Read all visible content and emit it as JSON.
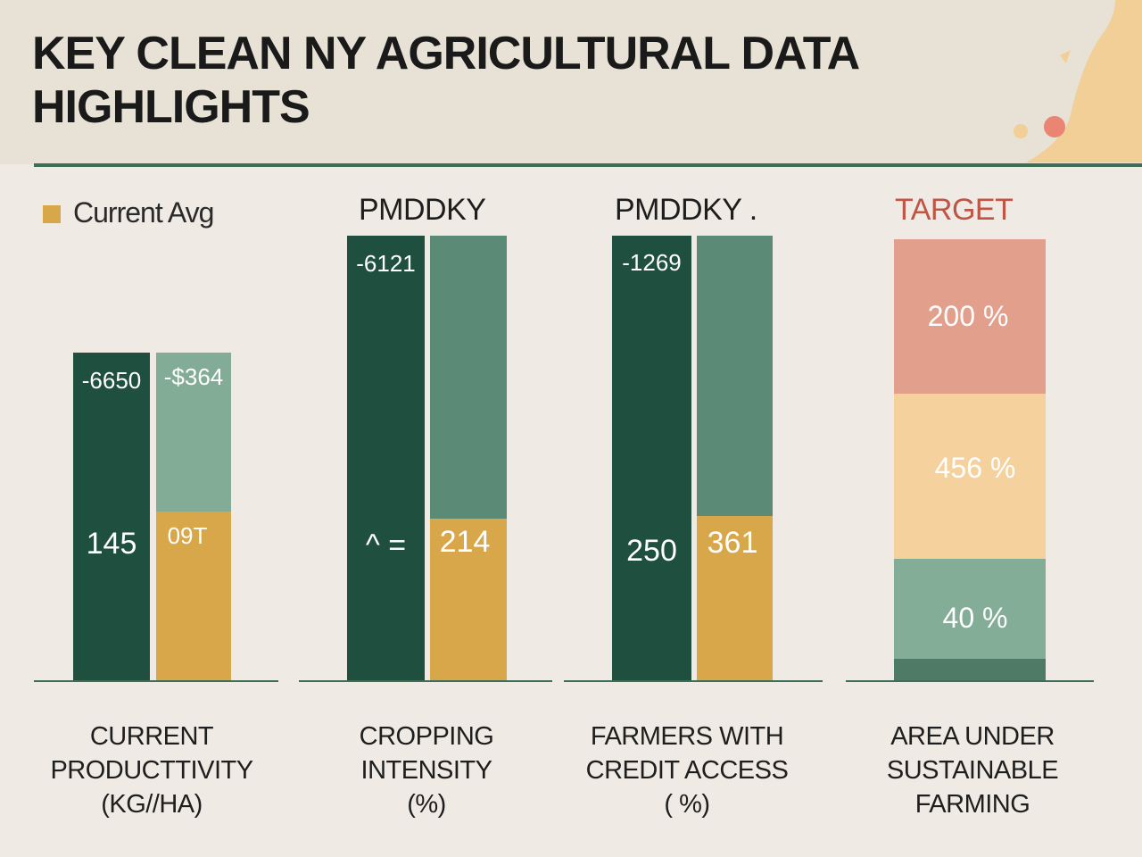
{
  "title": {
    "line1": "KEY CLEAN NY AGRICULTURAL DATA",
    "line2": "HIGHLIGHTS"
  },
  "legend": {
    "label": "Current Avg",
    "color": "#d8a74a"
  },
  "column_headers": [
    "PMDDKY",
    "PMDDKY .",
    "TARGET"
  ],
  "colors": {
    "dark_green": "#1f4f3f",
    "medium_green": "#5b8a76",
    "light_green": "#82ac96",
    "gold": "#d8a74a",
    "salmon": "#e2a08c",
    "peach": "#f5d29d",
    "sage": "#83ad96",
    "deep_sage": "#4f7b66",
    "axis": "#3f6e56",
    "header_bg": "#e7e1d6",
    "target_text": "#c05445"
  },
  "chart_data": {
    "type": "bar",
    "categories": [
      [
        "CURRENT",
        "PRODUCTTIVITY",
        "(KG//HA)"
      ],
      [
        "CROPPING",
        "INTENSITY",
        "(%)"
      ],
      [
        "FARMERS WITH",
        "CREDIT ACCESS",
        "( %)"
      ],
      [
        "AREA UNDER",
        "SUSTAINABLE",
        "FARMING"
      ]
    ],
    "bar_labels": [
      {
        "left_top": "-6650",
        "right_top": "-$364",
        "left_mid": "145",
        "right_mid": "09T"
      },
      {
        "left_top": "-6121",
        "right_top": "",
        "left_mid": "^ =",
        "right_mid": "214"
      },
      {
        "left_top": "-1269",
        "right_top": "",
        "left_mid": "250",
        "right_mid": "361"
      }
    ],
    "target_segments": [
      {
        "label": "200 %"
      },
      {
        "label": "456 %"
      },
      {
        "label": "40 %"
      }
    ],
    "grid": false,
    "legend_position": "top-left"
  }
}
